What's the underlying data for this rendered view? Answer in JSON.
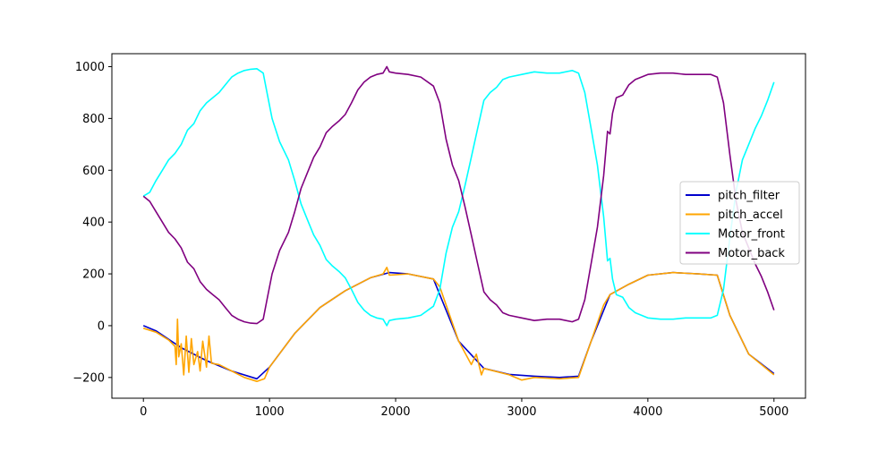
{
  "chart_data": {
    "type": "line",
    "title": "",
    "xlabel": "",
    "ylabel": "",
    "xlim": [
      -250,
      5250
    ],
    "ylim": [
      -280,
      1050
    ],
    "xticks": [
      0,
      1000,
      2000,
      3000,
      4000,
      5000
    ],
    "xtick_labels": [
      "0",
      "1000",
      "2000",
      "3000",
      "4000",
      "5000"
    ],
    "yticks": [
      -200,
      0,
      200,
      400,
      600,
      800,
      1000
    ],
    "ytick_labels": [
      "−200",
      "0",
      "200",
      "400",
      "600",
      "800",
      "1000"
    ],
    "grid": false,
    "legend_position": "center-right",
    "series": [
      {
        "name": "pitch_filter",
        "color": "#0000cd",
        "points": [
          [
            0,
            0
          ],
          [
            100,
            -20
          ],
          [
            300,
            -85
          ],
          [
            500,
            -135
          ],
          [
            700,
            -175
          ],
          [
            900,
            -205
          ],
          [
            1000,
            -160
          ],
          [
            1200,
            -30
          ],
          [
            1400,
            70
          ],
          [
            1600,
            135
          ],
          [
            1800,
            185
          ],
          [
            1950,
            205
          ],
          [
            2100,
            200
          ],
          [
            2300,
            180
          ],
          [
            2500,
            -60
          ],
          [
            2700,
            -165
          ],
          [
            2900,
            -188
          ],
          [
            3100,
            -195
          ],
          [
            3300,
            -200
          ],
          [
            3450,
            -195
          ],
          [
            3550,
            -60
          ],
          [
            3700,
            120
          ],
          [
            3850,
            160
          ],
          [
            4000,
            195
          ],
          [
            4200,
            205
          ],
          [
            4400,
            200
          ],
          [
            4550,
            195
          ],
          [
            4650,
            40
          ],
          [
            4800,
            -110
          ],
          [
            5000,
            -185
          ]
        ]
      },
      {
        "name": "pitch_accel",
        "color": "#ffa500",
        "points": [
          [
            0,
            -10
          ],
          [
            100,
            -25
          ],
          [
            200,
            -55
          ],
          [
            250,
            -80
          ],
          [
            260,
            -150
          ],
          [
            270,
            25
          ],
          [
            280,
            -120
          ],
          [
            300,
            -70
          ],
          [
            320,
            -190
          ],
          [
            340,
            -40
          ],
          [
            360,
            -180
          ],
          [
            380,
            -50
          ],
          [
            400,
            -150
          ],
          [
            430,
            -100
          ],
          [
            450,
            -175
          ],
          [
            470,
            -60
          ],
          [
            500,
            -160
          ],
          [
            520,
            -40
          ],
          [
            540,
            -145
          ],
          [
            600,
            -150
          ],
          [
            700,
            -175
          ],
          [
            800,
            -200
          ],
          [
            900,
            -215
          ],
          [
            960,
            -205
          ],
          [
            1000,
            -160
          ],
          [
            1200,
            -30
          ],
          [
            1400,
            70
          ],
          [
            1600,
            135
          ],
          [
            1800,
            185
          ],
          [
            1900,
            200
          ],
          [
            1930,
            225
          ],
          [
            1950,
            195
          ],
          [
            2100,
            200
          ],
          [
            2300,
            180
          ],
          [
            2350,
            150
          ],
          [
            2500,
            -60
          ],
          [
            2600,
            -150
          ],
          [
            2640,
            -110
          ],
          [
            2680,
            -190
          ],
          [
            2700,
            -165
          ],
          [
            2900,
            -190
          ],
          [
            3000,
            -210
          ],
          [
            3100,
            -200
          ],
          [
            3300,
            -205
          ],
          [
            3450,
            -200
          ],
          [
            3550,
            -60
          ],
          [
            3650,
            80
          ],
          [
            3700,
            120
          ],
          [
            3850,
            160
          ],
          [
            4000,
            195
          ],
          [
            4200,
            205
          ],
          [
            4400,
            200
          ],
          [
            4550,
            195
          ],
          [
            4650,
            40
          ],
          [
            4800,
            -110
          ],
          [
            5000,
            -190
          ]
        ]
      },
      {
        "name": "Motor_front",
        "color": "#00ffff",
        "points": [
          [
            0,
            500
          ],
          [
            50,
            515
          ],
          [
            100,
            560
          ],
          [
            150,
            600
          ],
          [
            200,
            640
          ],
          [
            250,
            665
          ],
          [
            300,
            700
          ],
          [
            350,
            755
          ],
          [
            400,
            780
          ],
          [
            450,
            830
          ],
          [
            500,
            860
          ],
          [
            550,
            880
          ],
          [
            600,
            900
          ],
          [
            650,
            930
          ],
          [
            700,
            960
          ],
          [
            750,
            975
          ],
          [
            800,
            985
          ],
          [
            850,
            990
          ],
          [
            900,
            992
          ],
          [
            950,
            975
          ],
          [
            980,
            900
          ],
          [
            1020,
            800
          ],
          [
            1080,
            710
          ],
          [
            1150,
            640
          ],
          [
            1200,
            560
          ],
          [
            1250,
            470
          ],
          [
            1300,
            410
          ],
          [
            1350,
            350
          ],
          [
            1400,
            310
          ],
          [
            1450,
            255
          ],
          [
            1500,
            230
          ],
          [
            1550,
            210
          ],
          [
            1600,
            185
          ],
          [
            1650,
            140
          ],
          [
            1700,
            90
          ],
          [
            1750,
            60
          ],
          [
            1800,
            40
          ],
          [
            1850,
            30
          ],
          [
            1900,
            25
          ],
          [
            1930,
            0
          ],
          [
            1950,
            20
          ],
          [
            2000,
            25
          ],
          [
            2100,
            30
          ],
          [
            2200,
            40
          ],
          [
            2300,
            75
          ],
          [
            2350,
            140
          ],
          [
            2400,
            280
          ],
          [
            2450,
            380
          ],
          [
            2500,
            440
          ],
          [
            2550,
            540
          ],
          [
            2600,
            650
          ],
          [
            2650,
            760
          ],
          [
            2700,
            870
          ],
          [
            2750,
            900
          ],
          [
            2800,
            920
          ],
          [
            2850,
            950
          ],
          [
            2900,
            960
          ],
          [
            3000,
            970
          ],
          [
            3100,
            980
          ],
          [
            3200,
            975
          ],
          [
            3300,
            975
          ],
          [
            3400,
            985
          ],
          [
            3450,
            975
          ],
          [
            3500,
            900
          ],
          [
            3550,
            760
          ],
          [
            3600,
            620
          ],
          [
            3650,
            420
          ],
          [
            3680,
            250
          ],
          [
            3700,
            260
          ],
          [
            3720,
            180
          ],
          [
            3750,
            120
          ],
          [
            3800,
            110
          ],
          [
            3850,
            70
          ],
          [
            3900,
            50
          ],
          [
            4000,
            30
          ],
          [
            4100,
            25
          ],
          [
            4200,
            25
          ],
          [
            4300,
            30
          ],
          [
            4400,
            30
          ],
          [
            4500,
            30
          ],
          [
            4550,
            40
          ],
          [
            4600,
            140
          ],
          [
            4650,
            340
          ],
          [
            4700,
            520
          ],
          [
            4750,
            640
          ],
          [
            4800,
            700
          ],
          [
            4850,
            760
          ],
          [
            4900,
            810
          ],
          [
            4950,
            870
          ],
          [
            5000,
            940
          ]
        ]
      },
      {
        "name": "Motor_back",
        "color": "#800080",
        "points": [
          [
            0,
            500
          ],
          [
            50,
            480
          ],
          [
            100,
            440
          ],
          [
            150,
            400
          ],
          [
            200,
            360
          ],
          [
            250,
            335
          ],
          [
            300,
            300
          ],
          [
            350,
            245
          ],
          [
            400,
            220
          ],
          [
            450,
            170
          ],
          [
            500,
            140
          ],
          [
            550,
            120
          ],
          [
            600,
            100
          ],
          [
            650,
            70
          ],
          [
            700,
            40
          ],
          [
            750,
            25
          ],
          [
            800,
            15
          ],
          [
            850,
            10
          ],
          [
            900,
            8
          ],
          [
            950,
            25
          ],
          [
            980,
            100
          ],
          [
            1020,
            200
          ],
          [
            1080,
            290
          ],
          [
            1150,
            360
          ],
          [
            1200,
            440
          ],
          [
            1250,
            530
          ],
          [
            1300,
            590
          ],
          [
            1350,
            650
          ],
          [
            1400,
            690
          ],
          [
            1450,
            745
          ],
          [
            1500,
            770
          ],
          [
            1550,
            790
          ],
          [
            1600,
            815
          ],
          [
            1650,
            860
          ],
          [
            1700,
            910
          ],
          [
            1750,
            940
          ],
          [
            1800,
            960
          ],
          [
            1850,
            970
          ],
          [
            1900,
            975
          ],
          [
            1930,
            1000
          ],
          [
            1950,
            980
          ],
          [
            2000,
            975
          ],
          [
            2100,
            970
          ],
          [
            2200,
            960
          ],
          [
            2300,
            925
          ],
          [
            2350,
            860
          ],
          [
            2400,
            720
          ],
          [
            2450,
            620
          ],
          [
            2500,
            560
          ],
          [
            2550,
            460
          ],
          [
            2600,
            350
          ],
          [
            2650,
            240
          ],
          [
            2700,
            130
          ],
          [
            2750,
            100
          ],
          [
            2800,
            80
          ],
          [
            2850,
            50
          ],
          [
            2900,
            40
          ],
          [
            3000,
            30
          ],
          [
            3100,
            20
          ],
          [
            3200,
            25
          ],
          [
            3300,
            25
          ],
          [
            3400,
            15
          ],
          [
            3450,
            25
          ],
          [
            3500,
            100
          ],
          [
            3550,
            240
          ],
          [
            3600,
            380
          ],
          [
            3650,
            580
          ],
          [
            3680,
            750
          ],
          [
            3700,
            740
          ],
          [
            3720,
            820
          ],
          [
            3750,
            880
          ],
          [
            3800,
            890
          ],
          [
            3850,
            930
          ],
          [
            3900,
            950
          ],
          [
            4000,
            970
          ],
          [
            4100,
            975
          ],
          [
            4200,
            975
          ],
          [
            4300,
            970
          ],
          [
            4400,
            970
          ],
          [
            4500,
            970
          ],
          [
            4550,
            960
          ],
          [
            4600,
            860
          ],
          [
            4650,
            660
          ],
          [
            4700,
            480
          ],
          [
            4750,
            360
          ],
          [
            4800,
            300
          ],
          [
            4850,
            240
          ],
          [
            4900,
            190
          ],
          [
            4950,
            130
          ],
          [
            5000,
            60
          ]
        ]
      }
    ]
  }
}
